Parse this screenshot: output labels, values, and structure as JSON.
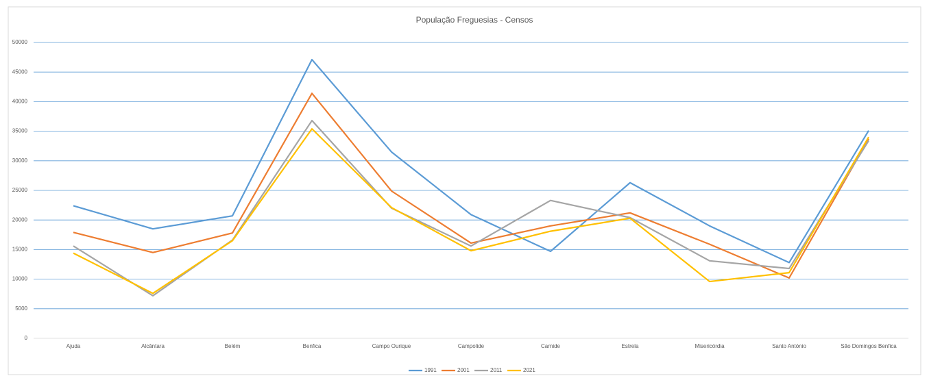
{
  "chart_data": {
    "type": "line",
    "title": "População Freguesias - Censos",
    "categories": [
      "Ajuda",
      "Alcântara",
      "Belém",
      "Benfica",
      "Campo Ourique",
      "Campolide",
      "Carnide",
      "Estrela",
      "Misericórdia",
      "Santo António",
      "São Domingos Benfica"
    ],
    "series": [
      {
        "name": "1991",
        "color": "#5b9bd5",
        "values": [
          22400,
          18500,
          20700,
          47100,
          31500,
          20900,
          14700,
          26300,
          19000,
          12800,
          35100
        ]
      },
      {
        "name": "2001",
        "color": "#ed7d31",
        "values": [
          17900,
          14500,
          17800,
          41400,
          24900,
          16100,
          19000,
          21200,
          15900,
          10200,
          33700
        ]
      },
      {
        "name": "2011",
        "color": "#a5a5a5",
        "values": [
          15600,
          7200,
          16600,
          36800,
          22000,
          15600,
          23300,
          20400,
          13100,
          11800,
          33400
        ]
      },
      {
        "name": "2021",
        "color": "#ffc000",
        "values": [
          14400,
          7600,
          16500,
          35400,
          22100,
          14800,
          18100,
          20300,
          9600,
          11100,
          34000
        ]
      }
    ],
    "ylim": [
      0,
      50000
    ],
    "yticks": [
      0,
      5000,
      10000,
      15000,
      20000,
      25000,
      30000,
      35000,
      40000,
      45000,
      50000
    ],
    "grid": true,
    "legend": "bottom"
  }
}
